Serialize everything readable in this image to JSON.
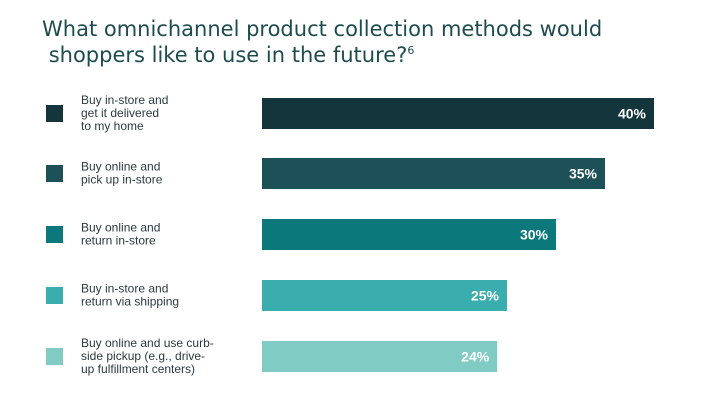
{
  "header": {
    "title_line1": "What omnichannel product collection methods would",
    "title_line2": "shoppers like to use in the future?",
    "title_footnote": "6"
  },
  "chart_data": {
    "type": "bar",
    "orientation": "horizontal",
    "title": "What omnichannel product collection methods would shoppers like to use in the future?",
    "categories": [
      [
        "Buy in-store and",
        "get it delivered",
        "to my home"
      ],
      [
        "Buy online and",
        "pick up in-store"
      ],
      [
        "Buy online and",
        "return in-store"
      ],
      [
        "Buy in-store and",
        "return via shipping"
      ],
      [
        "Buy online and use curb-",
        "side pickup (e.g., drive-",
        "up fulfillment centers)"
      ]
    ],
    "values": [
      40,
      35,
      30,
      25,
      24
    ],
    "value_labels": [
      "40%",
      "35%",
      "30%",
      "25%",
      "24%"
    ],
    "colors": [
      "#13353b",
      "#1d5157",
      "#0b787c",
      "#3aaeae",
      "#80cbc4"
    ],
    "xlim": [
      0,
      40
    ],
    "grid": false,
    "legend": "left"
  }
}
